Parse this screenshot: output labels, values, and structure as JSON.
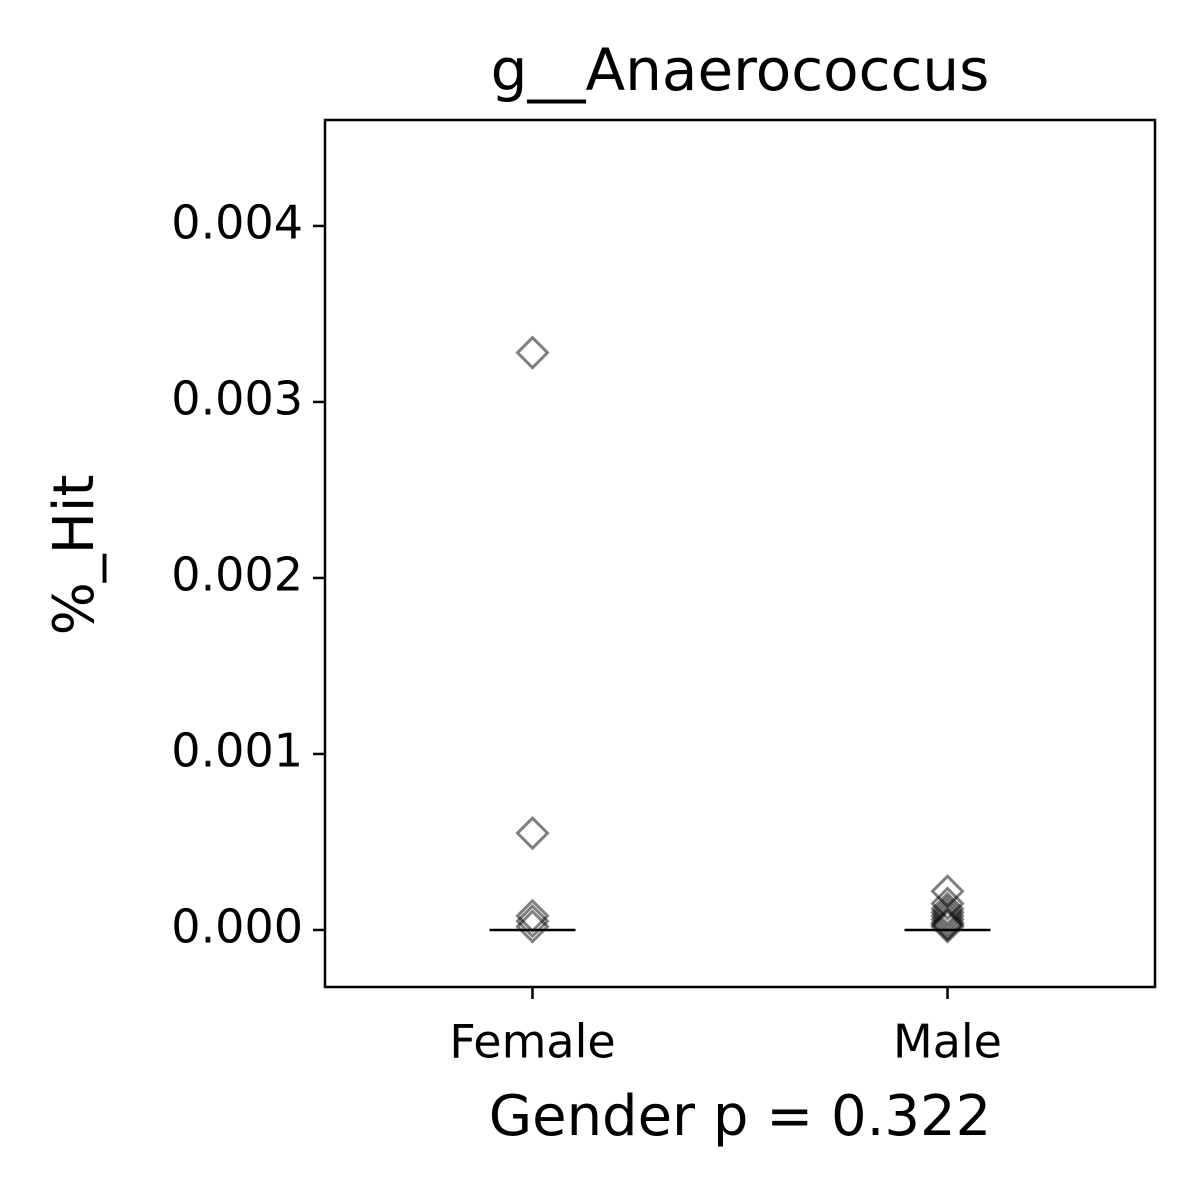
{
  "chart_data": {
    "type": "strip",
    "title": "g__Anaerococcus",
    "x_label": "Gender p = 0.322",
    "y_label": "%_Hit",
    "categories": [
      "Female",
      "Male"
    ],
    "values": [
      [
        0.00328,
        0.00055,
        8e-05,
        5e-05,
        2e-05
      ],
      [
        0.00022,
        0.00015,
        0.00012,
        0.0001,
        8e-05,
        6e-05,
        4e-05,
        3e-05,
        2e-05
      ]
    ],
    "medians": [
      0,
      0
    ],
    "color": "#000000",
    "marker_opacity": 0.5,
    "ylim": [
      -0.000324,
      0.004602
    ],
    "yticks": [
      {
        "value": 0,
        "label": "0.000"
      },
      {
        "value": 0.001,
        "label": "0.001"
      },
      {
        "value": 0.002,
        "label": "0.002"
      },
      {
        "value": 0.003,
        "label": "0.003"
      },
      {
        "value": 0.004,
        "label": "0.004"
      }
    ],
    "grid": false
  }
}
